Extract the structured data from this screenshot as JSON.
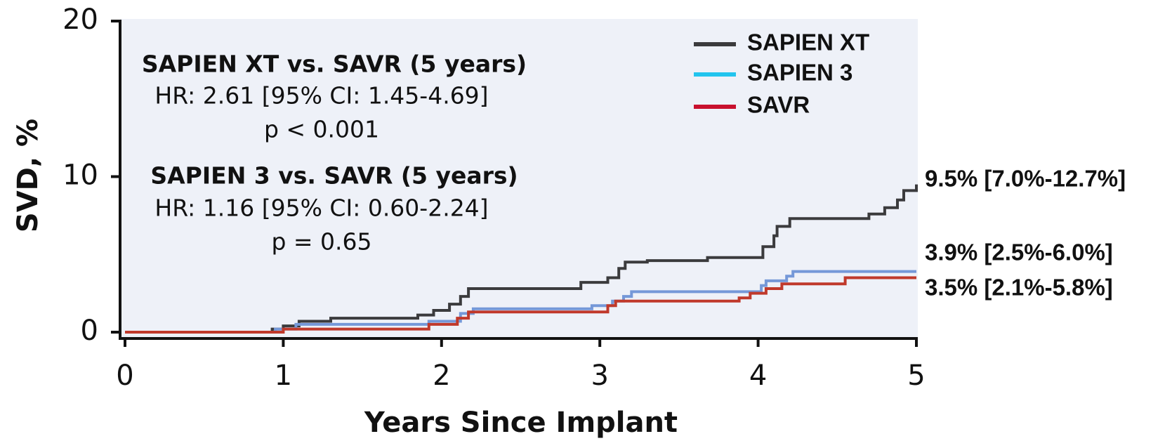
{
  "chart_data": {
    "type": "line",
    "step": true,
    "xlabel": "Years Since Implant",
    "ylabel": "SVD, %",
    "xlim": [
      0,
      5
    ],
    "xticks": [
      0,
      1,
      2,
      3,
      4,
      5
    ],
    "ylim": [
      0,
      20
    ],
    "yticks": [
      0,
      10,
      20
    ],
    "legend": "upper right",
    "background": "#eef1f8",
    "series": [
      {
        "name": "SAPIEN XT",
        "color": "#3b3b3d",
        "legend_color": "#3b3b3d",
        "end_label": "9.5% [7.0%-12.7%]",
        "x": [
          0,
          0.93,
          0.93,
          1.0,
          1.0,
          1.1,
          1.1,
          1.3,
          1.3,
          1.85,
          1.85,
          1.95,
          1.95,
          2.05,
          2.05,
          2.12,
          2.12,
          2.17,
          2.17,
          2.88,
          2.88,
          3.05,
          3.05,
          3.12,
          3.12,
          3.16,
          3.16,
          3.3,
          3.3,
          3.68,
          3.68,
          4.03,
          4.03,
          4.1,
          4.1,
          4.12,
          4.12,
          4.2,
          4.2,
          4.7,
          4.7,
          4.8,
          4.8,
          4.88,
          4.88,
          4.92,
          4.92,
          5.0,
          5.0
        ],
        "values": [
          0,
          0,
          0.2,
          0.2,
          0.4,
          0.4,
          0.7,
          0.7,
          0.9,
          0.9,
          1.1,
          1.1,
          1.4,
          1.4,
          1.8,
          1.8,
          2.3,
          2.3,
          2.8,
          2.8,
          3.2,
          3.2,
          3.5,
          3.5,
          4.1,
          4.1,
          4.5,
          4.5,
          4.6,
          4.6,
          4.8,
          4.8,
          5.5,
          5.5,
          6.2,
          6.2,
          6.8,
          6.8,
          7.3,
          7.3,
          7.6,
          7.6,
          8.0,
          8.0,
          8.5,
          8.5,
          9.1,
          9.1,
          9.5
        ]
      },
      {
        "name": "SAPIEN 3",
        "color": "#7598d8",
        "legend_color": "#22c4ee",
        "end_label": "3.9% [2.5%-6.0%]",
        "x": [
          0,
          0.95,
          0.95,
          1.08,
          1.08,
          1.92,
          1.92,
          2.12,
          2.12,
          2.2,
          2.2,
          2.95,
          2.95,
          3.08,
          3.08,
          3.15,
          3.15,
          3.2,
          3.2,
          4.02,
          4.02,
          4.05,
          4.05,
          4.18,
          4.18,
          4.22,
          4.22,
          5.0
        ],
        "values": [
          0,
          0,
          0.2,
          0.2,
          0.5,
          0.5,
          0.7,
          0.7,
          1.2,
          1.2,
          1.5,
          1.5,
          1.7,
          1.7,
          2.0,
          2.0,
          2.3,
          2.3,
          2.6,
          2.6,
          3.0,
          3.0,
          3.3,
          3.3,
          3.6,
          3.6,
          3.9,
          3.9
        ]
      },
      {
        "name": "SAVR",
        "color": "#c0392b",
        "legend_color": "#c8102e",
        "end_label": "3.5% [2.1%-5.8%]",
        "x": [
          0,
          1.0,
          1.0,
          1.92,
          1.92,
          2.1,
          2.1,
          2.17,
          2.17,
          3.05,
          3.05,
          3.1,
          3.1,
          3.88,
          3.88,
          3.95,
          3.95,
          4.05,
          4.05,
          4.15,
          4.15,
          4.55,
          4.55,
          5.0
        ],
        "values": [
          0,
          0,
          0.2,
          0.2,
          0.5,
          0.5,
          0.9,
          0.9,
          1.3,
          1.3,
          1.7,
          1.7,
          2.0,
          2.0,
          2.2,
          2.2,
          2.5,
          2.5,
          2.8,
          2.8,
          3.1,
          3.1,
          3.5,
          3.5
        ]
      }
    ],
    "annotations": [
      {
        "text": "SAPIEN XT vs. SAVR (5 years)",
        "bold": true
      },
      {
        "text": "HR: 2.61 [95% CI: 1.45-4.69]",
        "bold": false
      },
      {
        "text": "p < 0.001",
        "bold": false
      },
      {
        "text": "SAPIEN 3 vs. SAVR (5 years)",
        "bold": true
      },
      {
        "text": "HR: 1.16 [95% CI: 0.60-2.24]",
        "bold": false
      },
      {
        "text": "p = 0.65",
        "bold": false
      }
    ]
  }
}
